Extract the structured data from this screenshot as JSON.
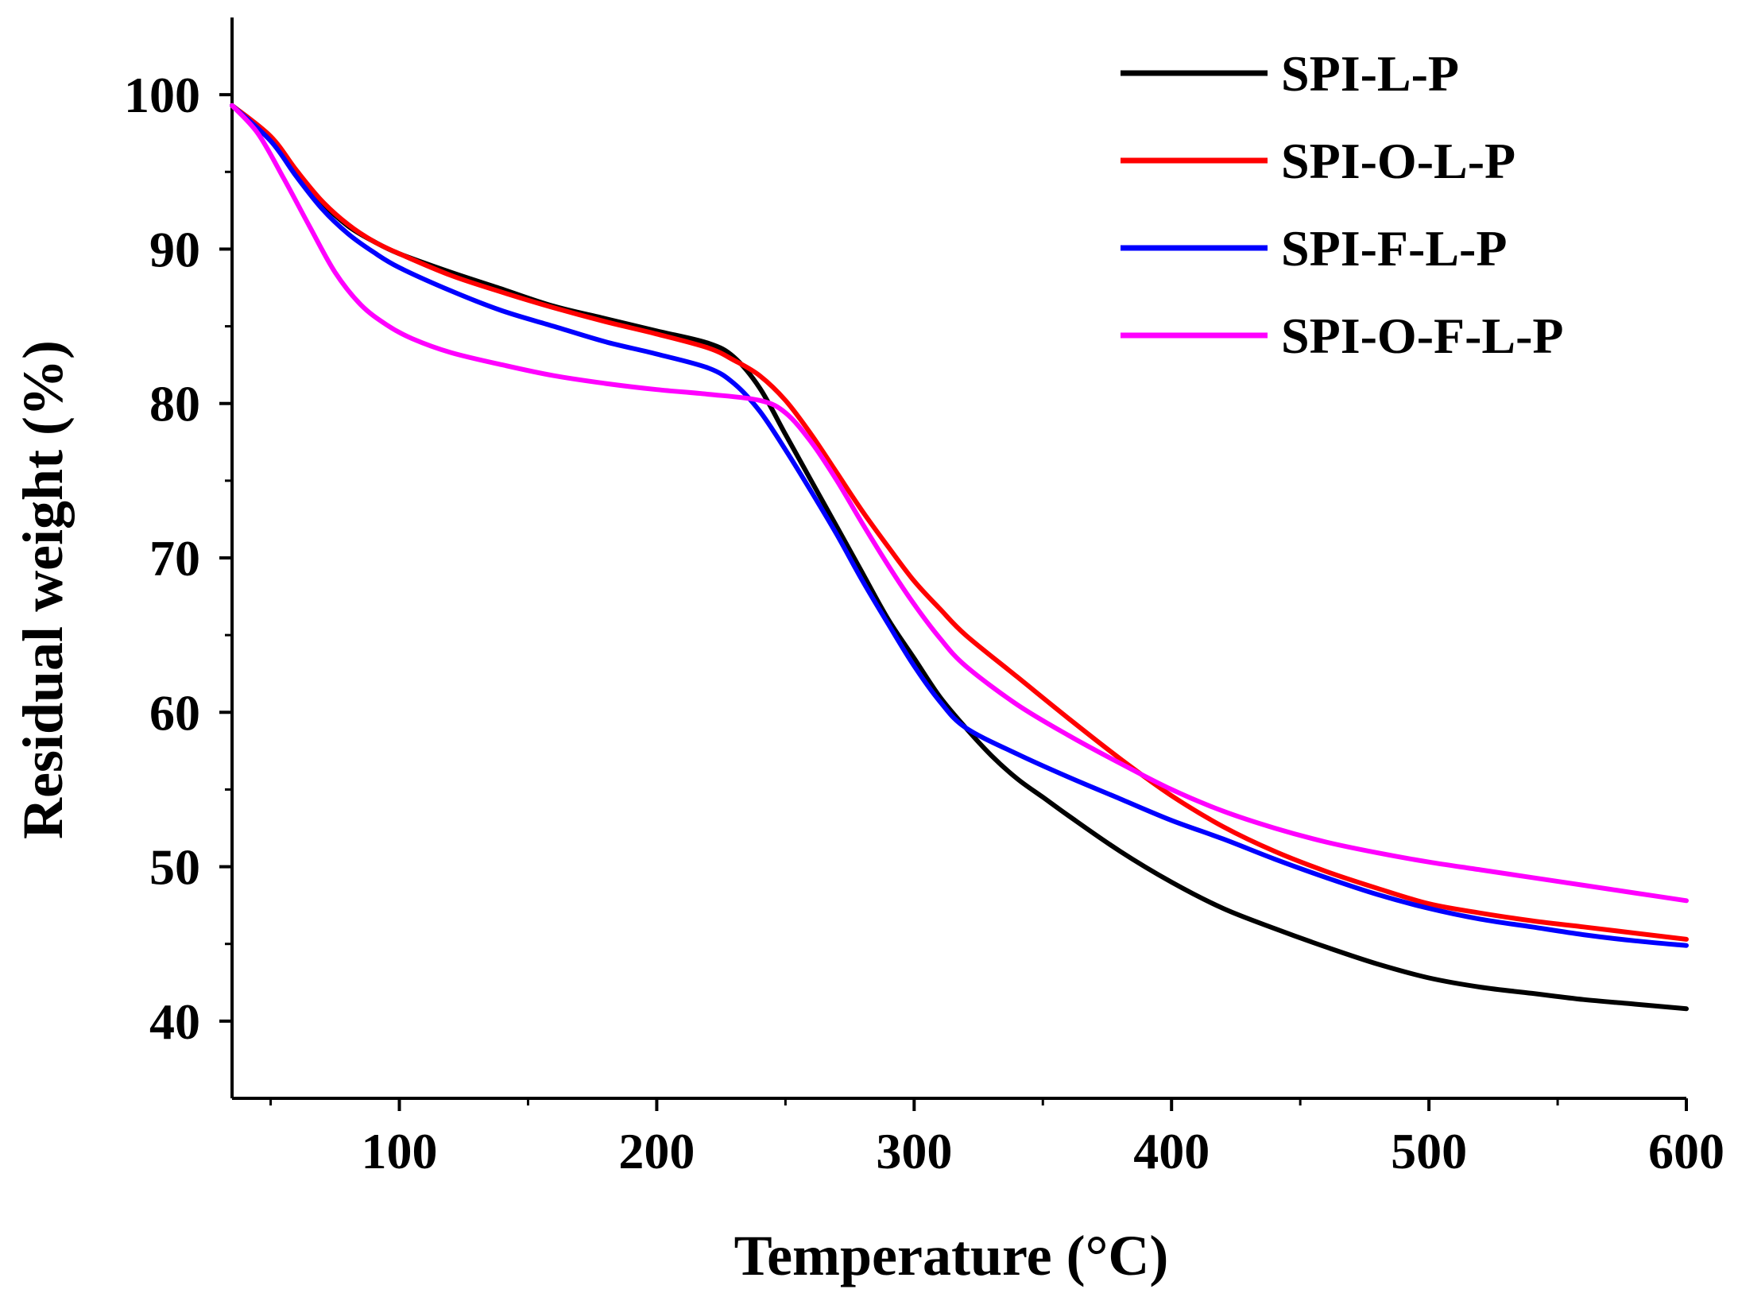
{
  "chart_data": {
    "type": "line",
    "title": "",
    "xlabel": "Temperature (°C)",
    "ylabel": "Residual weight (%)",
    "xlim": [
      35,
      600
    ],
    "ylim": [
      35,
      105
    ],
    "xticks": [
      100,
      200,
      300,
      400,
      500,
      600
    ],
    "yticks": [
      40,
      50,
      60,
      70,
      80,
      90,
      100
    ],
    "x_minor_step": 50,
    "y_minor_step": 5,
    "grid": false,
    "legend_position": "top-right",
    "series": [
      {
        "name": "SPI-L-P",
        "color": "#000000",
        "points": [
          [
            35,
            99.3
          ],
          [
            50,
            97.2
          ],
          [
            60,
            95.0
          ],
          [
            70,
            93.0
          ],
          [
            80,
            91.5
          ],
          [
            90,
            90.5
          ],
          [
            100,
            89.7
          ],
          [
            120,
            88.5
          ],
          [
            140,
            87.4
          ],
          [
            160,
            86.3
          ],
          [
            180,
            85.5
          ],
          [
            200,
            84.7
          ],
          [
            220,
            83.9
          ],
          [
            230,
            83.0
          ],
          [
            240,
            81.0
          ],
          [
            250,
            78.0
          ],
          [
            260,
            75.0
          ],
          [
            270,
            72.0
          ],
          [
            280,
            69.0
          ],
          [
            290,
            66.0
          ],
          [
            300,
            63.5
          ],
          [
            310,
            61.0
          ],
          [
            320,
            59.0
          ],
          [
            330,
            57.2
          ],
          [
            340,
            55.7
          ],
          [
            350,
            54.5
          ],
          [
            360,
            53.3
          ],
          [
            380,
            51.0
          ],
          [
            400,
            49.0
          ],
          [
            420,
            47.3
          ],
          [
            440,
            46.0
          ],
          [
            460,
            44.8
          ],
          [
            480,
            43.7
          ],
          [
            500,
            42.8
          ],
          [
            520,
            42.2
          ],
          [
            540,
            41.8
          ],
          [
            560,
            41.4
          ],
          [
            580,
            41.1
          ],
          [
            600,
            40.8
          ]
        ]
      },
      {
        "name": "SPI-O-L-P",
        "color": "#ff0000",
        "points": [
          [
            35,
            99.3
          ],
          [
            50,
            97.3
          ],
          [
            60,
            95.1
          ],
          [
            70,
            93.1
          ],
          [
            80,
            91.6
          ],
          [
            90,
            90.5
          ],
          [
            100,
            89.7
          ],
          [
            120,
            88.3
          ],
          [
            140,
            87.2
          ],
          [
            160,
            86.2
          ],
          [
            180,
            85.3
          ],
          [
            200,
            84.5
          ],
          [
            220,
            83.6
          ],
          [
            230,
            82.8
          ],
          [
            240,
            81.8
          ],
          [
            250,
            80.2
          ],
          [
            260,
            78.0
          ],
          [
            270,
            75.5
          ],
          [
            280,
            73.0
          ],
          [
            290,
            70.7
          ],
          [
            300,
            68.5
          ],
          [
            310,
            66.7
          ],
          [
            320,
            65.0
          ],
          [
            340,
            62.3
          ],
          [
            360,
            59.6
          ],
          [
            380,
            57.0
          ],
          [
            400,
            54.6
          ],
          [
            420,
            52.6
          ],
          [
            440,
            51.0
          ],
          [
            460,
            49.7
          ],
          [
            480,
            48.6
          ],
          [
            500,
            47.6
          ],
          [
            520,
            47.0
          ],
          [
            540,
            46.5
          ],
          [
            560,
            46.1
          ],
          [
            580,
            45.7
          ],
          [
            600,
            45.3
          ]
        ]
      },
      {
        "name": "SPI-F-L-P",
        "color": "#0000ff",
        "points": [
          [
            35,
            99.3
          ],
          [
            50,
            97.0
          ],
          [
            60,
            94.7
          ],
          [
            70,
            92.6
          ],
          [
            80,
            91.0
          ],
          [
            90,
            89.8
          ],
          [
            100,
            88.8
          ],
          [
            120,
            87.3
          ],
          [
            140,
            86.0
          ],
          [
            160,
            85.0
          ],
          [
            180,
            84.0
          ],
          [
            200,
            83.2
          ],
          [
            220,
            82.3
          ],
          [
            230,
            81.3
          ],
          [
            240,
            79.5
          ],
          [
            250,
            77.0
          ],
          [
            260,
            74.3
          ],
          [
            270,
            71.5
          ],
          [
            280,
            68.5
          ],
          [
            290,
            65.7
          ],
          [
            300,
            63.0
          ],
          [
            310,
            60.7
          ],
          [
            320,
            59.0
          ],
          [
            340,
            57.3
          ],
          [
            360,
            55.8
          ],
          [
            380,
            54.4
          ],
          [
            400,
            53.0
          ],
          [
            420,
            51.8
          ],
          [
            440,
            50.5
          ],
          [
            460,
            49.3
          ],
          [
            480,
            48.2
          ],
          [
            500,
            47.3
          ],
          [
            520,
            46.6
          ],
          [
            540,
            46.1
          ],
          [
            560,
            45.6
          ],
          [
            580,
            45.2
          ],
          [
            600,
            44.9
          ]
        ]
      },
      {
        "name": "SPI-O-F-L-P",
        "color": "#ff00ff",
        "points": [
          [
            35,
            99.3
          ],
          [
            45,
            97.5
          ],
          [
            55,
            94.6
          ],
          [
            65,
            91.5
          ],
          [
            75,
            88.5
          ],
          [
            85,
            86.4
          ],
          [
            95,
            85.1
          ],
          [
            105,
            84.2
          ],
          [
            120,
            83.3
          ],
          [
            140,
            82.5
          ],
          [
            160,
            81.8
          ],
          [
            180,
            81.3
          ],
          [
            200,
            80.9
          ],
          [
            220,
            80.6
          ],
          [
            240,
            80.2
          ],
          [
            250,
            79.4
          ],
          [
            260,
            77.5
          ],
          [
            270,
            75.0
          ],
          [
            280,
            72.2
          ],
          [
            290,
            69.5
          ],
          [
            300,
            67.0
          ],
          [
            310,
            64.8
          ],
          [
            320,
            63.0
          ],
          [
            340,
            60.5
          ],
          [
            360,
            58.5
          ],
          [
            380,
            56.7
          ],
          [
            400,
            55.0
          ],
          [
            420,
            53.6
          ],
          [
            440,
            52.5
          ],
          [
            460,
            51.6
          ],
          [
            480,
            50.9
          ],
          [
            500,
            50.3
          ],
          [
            520,
            49.8
          ],
          [
            540,
            49.3
          ],
          [
            560,
            48.8
          ],
          [
            580,
            48.3
          ],
          [
            600,
            47.8
          ]
        ]
      }
    ]
  }
}
